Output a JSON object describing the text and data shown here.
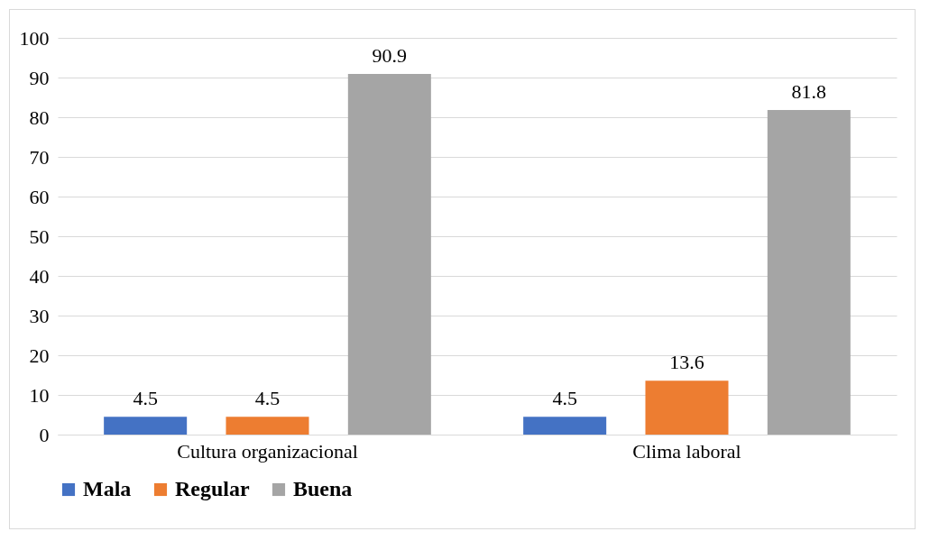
{
  "chart_data": {
    "type": "bar",
    "categories": [
      "Cultura organizacional",
      "Clima laboral"
    ],
    "series": [
      {
        "name": "Mala",
        "color": "#4472c4",
        "values": [
          4.5,
          4.5
        ]
      },
      {
        "name": "Regular",
        "color": "#ed7d31",
        "values": [
          4.5,
          13.6
        ]
      },
      {
        "name": "Buena",
        "color": "#a5a5a5",
        "values": [
          90.9,
          81.8
        ]
      }
    ],
    "ylim": [
      0,
      100
    ],
    "yticks": [
      0,
      10,
      20,
      30,
      40,
      50,
      60,
      70,
      80,
      90,
      100
    ],
    "grid": "y",
    "legend": "bottom",
    "data_labels": true
  }
}
